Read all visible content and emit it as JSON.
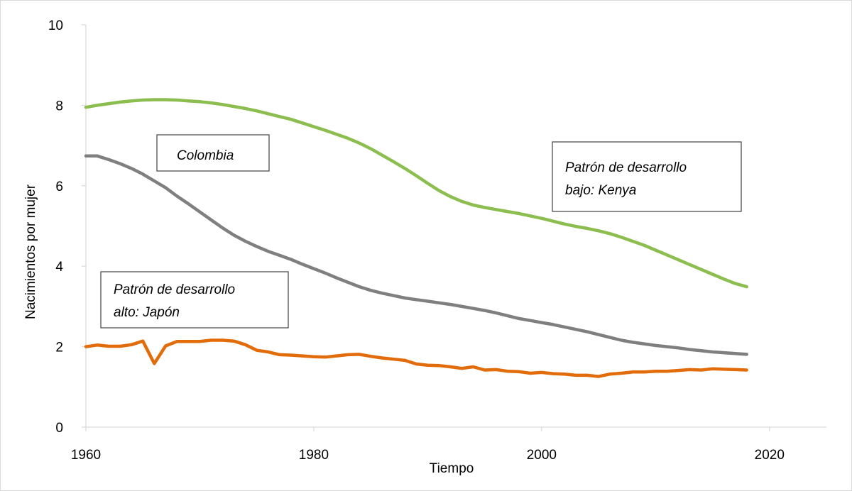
{
  "chart_data": {
    "type": "line",
    "title": "",
    "xlabel": "Tiempo",
    "ylabel": "Nacimientos por mujer",
    "xlim": [
      1960,
      2025
    ],
    "ylim": [
      0,
      10
    ],
    "xticks": [
      1960,
      1980,
      2000,
      2020
    ],
    "yticks": [
      0,
      2,
      4,
      6,
      8,
      10
    ],
    "grid": false,
    "legend": "none",
    "series": [
      {
        "color": "#8cbd4f",
        "x": [
          1960,
          1961,
          1962,
          1963,
          1964,
          1965,
          1966,
          1967,
          1968,
          1969,
          1970,
          1971,
          1972,
          1973,
          1974,
          1975,
          1976,
          1977,
          1978,
          1979,
          1980,
          1981,
          1982,
          1983,
          1984,
          1985,
          1986,
          1987,
          1988,
          1989,
          1990,
          1991,
          1992,
          1993,
          1994,
          1995,
          1996,
          1997,
          1998,
          1999,
          2000,
          2001,
          2002,
          2003,
          2004,
          2005,
          2006,
          2007,
          2008,
          2009,
          2010,
          2011,
          2012,
          2013,
          2014,
          2015,
          2016,
          2017,
          2018
        ],
        "y": [
          7.95,
          8.0,
          8.04,
          8.08,
          8.11,
          8.13,
          8.14,
          8.14,
          8.13,
          8.11,
          8.09,
          8.06,
          8.02,
          7.97,
          7.92,
          7.86,
          7.79,
          7.72,
          7.65,
          7.56,
          7.47,
          7.38,
          7.28,
          7.18,
          7.06,
          6.92,
          6.76,
          6.6,
          6.43,
          6.25,
          6.06,
          5.88,
          5.73,
          5.61,
          5.52,
          5.46,
          5.41,
          5.36,
          5.31,
          5.25,
          5.19,
          5.12,
          5.05,
          4.99,
          4.94,
          4.88,
          4.81,
          4.72,
          4.62,
          4.52,
          4.4,
          4.28,
          4.16,
          4.04,
          3.92,
          3.8,
          3.68,
          3.57,
          3.49
        ]
      },
      {
        "color": "#7f7f7f",
        "x": [
          1960,
          1961,
          1962,
          1963,
          1964,
          1965,
          1966,
          1967,
          1968,
          1969,
          1970,
          1971,
          1972,
          1973,
          1974,
          1975,
          1976,
          1977,
          1978,
          1979,
          1980,
          1981,
          1982,
          1983,
          1984,
          1985,
          1986,
          1987,
          1988,
          1989,
          1990,
          1991,
          1992,
          1993,
          1994,
          1995,
          1996,
          1997,
          1998,
          1999,
          2000,
          2001,
          2002,
          2003,
          2004,
          2005,
          2006,
          2007,
          2008,
          2009,
          2010,
          2011,
          2012,
          2013,
          2014,
          2015,
          2016,
          2017,
          2018
        ],
        "y": [
          6.74,
          6.74,
          6.65,
          6.55,
          6.43,
          6.29,
          6.12,
          5.95,
          5.74,
          5.55,
          5.35,
          5.15,
          4.95,
          4.77,
          4.62,
          4.49,
          4.37,
          4.27,
          4.17,
          4.05,
          3.94,
          3.83,
          3.71,
          3.6,
          3.49,
          3.4,
          3.33,
          3.27,
          3.21,
          3.17,
          3.13,
          3.09,
          3.05,
          3.0,
          2.95,
          2.9,
          2.84,
          2.77,
          2.7,
          2.65,
          2.6,
          2.55,
          2.49,
          2.43,
          2.37,
          2.3,
          2.23,
          2.16,
          2.11,
          2.07,
          2.03,
          2.0,
          1.97,
          1.93,
          1.9,
          1.87,
          1.85,
          1.83,
          1.81
        ]
      },
      {
        "color": "#e36c0a",
        "x": [
          1960,
          1961,
          1962,
          1963,
          1964,
          1965,
          1966,
          1967,
          1968,
          1969,
          1970,
          1971,
          1972,
          1973,
          1974,
          1975,
          1976,
          1977,
          1978,
          1979,
          1980,
          1981,
          1982,
          1983,
          1984,
          1985,
          1986,
          1987,
          1988,
          1989,
          1990,
          1991,
          1992,
          1993,
          1994,
          1995,
          1996,
          1997,
          1998,
          1999,
          2000,
          2001,
          2002,
          2003,
          2004,
          2005,
          2006,
          2007,
          2008,
          2009,
          2010,
          2011,
          2012,
          2013,
          2014,
          2015,
          2016,
          2017,
          2018
        ],
        "y": [
          2.0,
          2.04,
          2.01,
          2.01,
          2.05,
          2.14,
          1.58,
          2.02,
          2.13,
          2.13,
          2.13,
          2.16,
          2.16,
          2.14,
          2.05,
          1.91,
          1.87,
          1.8,
          1.79,
          1.77,
          1.75,
          1.74,
          1.77,
          1.8,
          1.81,
          1.76,
          1.72,
          1.69,
          1.66,
          1.57,
          1.54,
          1.53,
          1.5,
          1.46,
          1.5,
          1.42,
          1.43,
          1.39,
          1.38,
          1.34,
          1.36,
          1.33,
          1.32,
          1.29,
          1.29,
          1.26,
          1.32,
          1.34,
          1.37,
          1.37,
          1.39,
          1.39,
          1.41,
          1.43,
          1.42,
          1.45,
          1.44,
          1.43,
          1.42
        ]
      }
    ],
    "annotations": [
      {
        "lines": [
          "Colombia"
        ]
      },
      {
        "lines": [
          "Patrón de desarrollo",
          "bajo: Kenya"
        ]
      },
      {
        "lines": [
          "Patrón de desarrollo",
          "alto: Japón"
        ]
      }
    ]
  }
}
